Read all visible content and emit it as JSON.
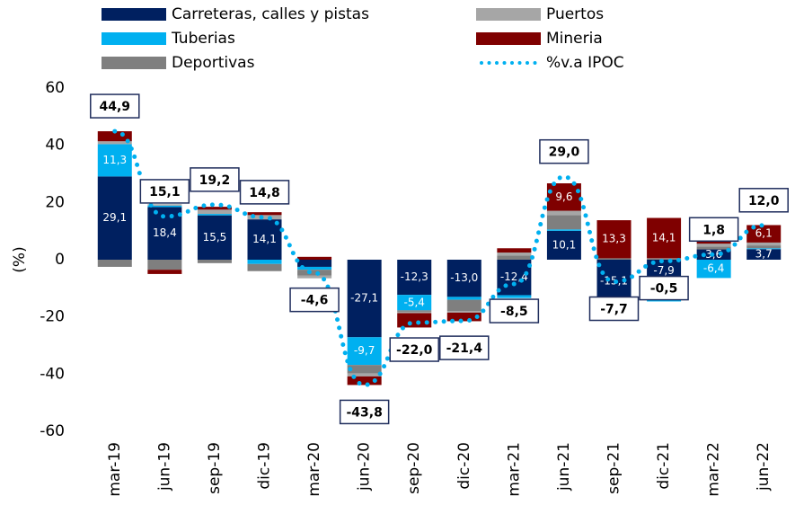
{
  "chart_data": {
    "type": "bar",
    "stacked": true,
    "ylabel": "(%)",
    "categories": [
      "mar-19",
      "jun-19",
      "sep-19",
      "dic-19",
      "mar-20",
      "jun-20",
      "sep-20",
      "dic-20",
      "mar-21",
      "jun-21",
      "sep-21",
      "dic-21",
      "mar-22",
      "jun-22"
    ],
    "ylim": [
      -60,
      60
    ],
    "yticks": [
      -60,
      -40,
      -20,
      0,
      20,
      40,
      60
    ],
    "series": [
      {
        "name": "Carreteras, calles y pistas",
        "color": "#002060",
        "values": [
          29.1,
          18.4,
          15.5,
          14.1,
          -2.5,
          -27.1,
          -12.3,
          -13.0,
          -12.4,
          10.1,
          -15.1,
          -7.9,
          3.6,
          3.7
        ],
        "value_labels": [
          "29,1",
          "18,4",
          "15,5",
          "14,1",
          null,
          "-27,1",
          "-12,3",
          "-13,0",
          "-12,4",
          "10,1",
          "-15,1",
          "-7,9",
          "3,6",
          "3,7"
        ]
      },
      {
        "name": "Tuberias",
        "color": "#00b0f0",
        "values": [
          11.3,
          0.5,
          0.5,
          -1.5,
          -1.0,
          -9.7,
          -5.4,
          -1.0,
          -1.0,
          0.5,
          -3.0,
          -6.7,
          -6.4,
          0.3
        ],
        "value_labels": [
          "11,3",
          null,
          null,
          null,
          null,
          "-9,7",
          "-5,4",
          null,
          null,
          null,
          null,
          "-6,7",
          "-6,4",
          null
        ]
      },
      {
        "name": "Deportivas",
        "color": "#7f7f7f",
        "values": [
          -2.5,
          -3.5,
          -1.2,
          -2.5,
          -2.0,
          -3.0,
          -0.5,
          -4.0,
          1.5,
          5.0,
          0.5,
          0.3,
          1.0,
          1.0
        ]
      },
      {
        "name": "Puertos",
        "color": "#a6a6a6",
        "values": [
          1.0,
          0.5,
          1.5,
          1.5,
          -1.0,
          -1.0,
          -0.5,
          -0.5,
          1.0,
          1.5,
          -1.0,
          0.2,
          1.0,
          1.0
        ]
      },
      {
        "name": "Mineria",
        "color": "#7f0000",
        "values": [
          3.5,
          -1.5,
          1.0,
          1.0,
          1.0,
          -3.0,
          -5.0,
          -3.0,
          1.5,
          9.6,
          13.3,
          14.1,
          3.0,
          6.1
        ],
        "value_labels": [
          null,
          null,
          null,
          null,
          null,
          null,
          null,
          null,
          null,
          "9,6",
          "13,3",
          "14,1",
          null,
          "6,1"
        ]
      },
      {
        "name": "%v.a IPOC",
        "color": "#00b0f0",
        "type": "line",
        "values": [
          44.9,
          15.1,
          19.2,
          14.8,
          -4.6,
          -43.8,
          -22.0,
          -21.4,
          -8.5,
          29.0,
          -7.7,
          -0.5,
          1.8,
          12.0
        ],
        "value_labels": [
          "44,9",
          "15,1",
          "19,2",
          "14,8",
          "-4,6",
          "-43,8",
          "-22,0",
          "-21,4",
          "-8,5",
          "29,0",
          "-7,7",
          "-0,5",
          "1,8",
          "12,0"
        ]
      }
    ]
  }
}
